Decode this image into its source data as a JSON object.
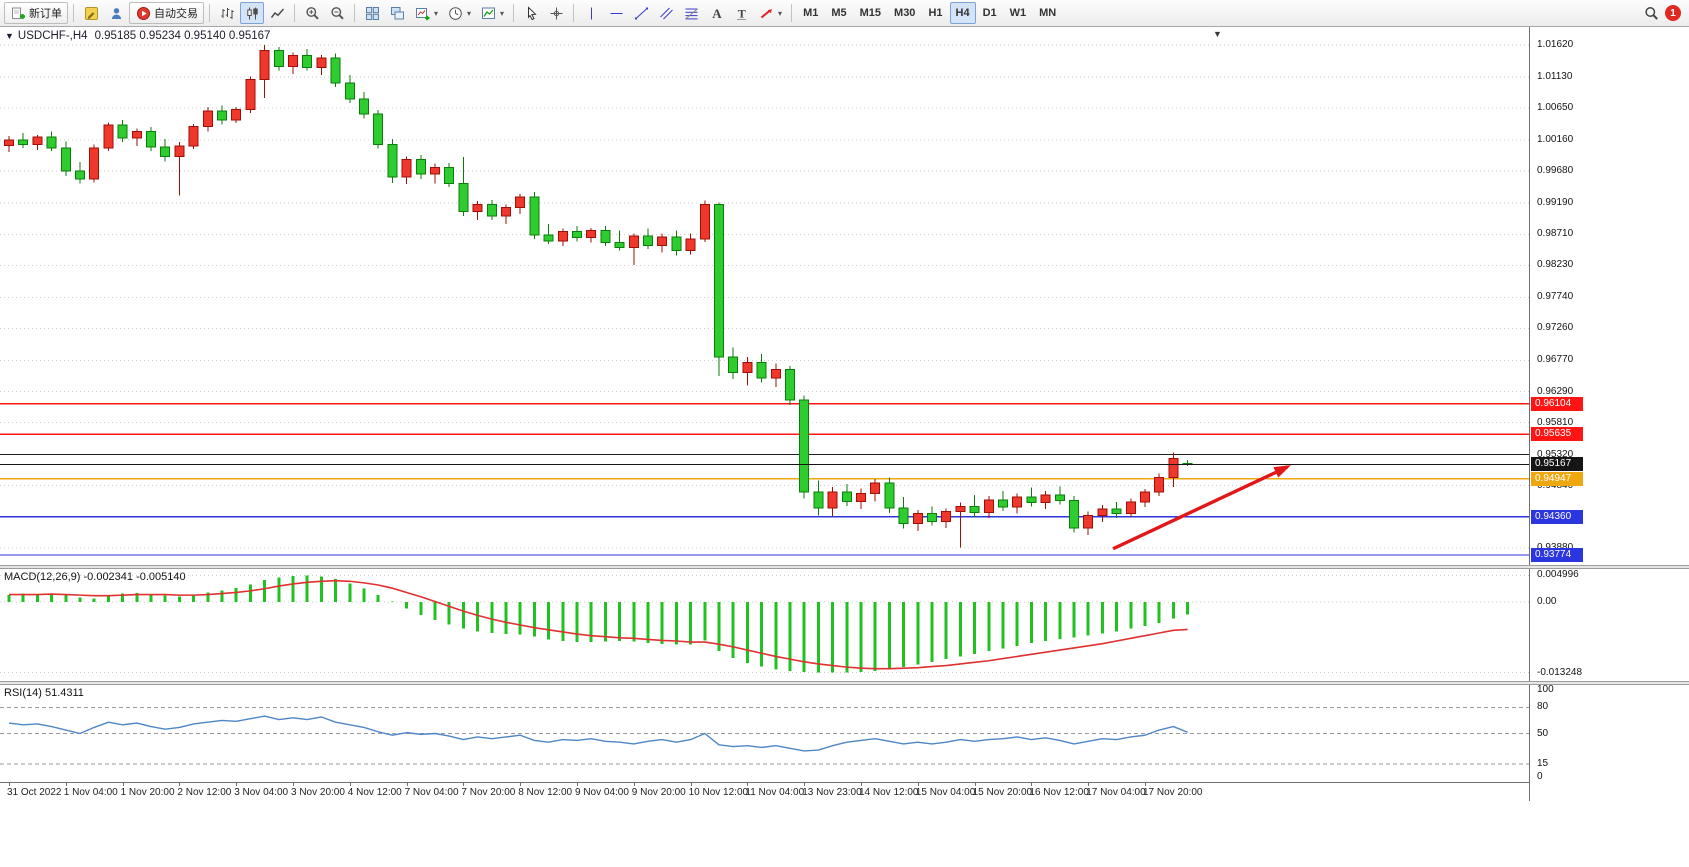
{
  "toolbar": {
    "items": [
      {
        "name": "new-order",
        "icon": "new-order",
        "label": "新订单",
        "framed": true
      },
      {
        "sep": true
      },
      {
        "name": "metaeditor",
        "icon": "metaeditor"
      },
      {
        "name": "market-depth",
        "icon": "person"
      },
      {
        "name": "autotrading",
        "icon": "autotrading",
        "label": "自动交易",
        "framed": true
      },
      {
        "sep": true
      },
      {
        "name": "bar-chart-mode",
        "icon": "bar-chart"
      },
      {
        "name": "candle-chart-mode",
        "icon": "candle-chart",
        "active": true
      },
      {
        "name": "line-chart-mode",
        "icon": "line-chart"
      },
      {
        "sep": true
      },
      {
        "name": "zoom-in",
        "icon": "zoom-in"
      },
      {
        "name": "zoom-out",
        "icon": "zoom-out"
      },
      {
        "sep": true
      },
      {
        "name": "tile-windows",
        "icon": "tile"
      },
      {
        "name": "cascade-windows",
        "icon": "cascade"
      },
      {
        "name": "new-chart",
        "icon": "new-chart",
        "dropdown": true
      },
      {
        "name": "periods",
        "icon": "clock",
        "dropdown": true
      },
      {
        "name": "templates",
        "icon": "template",
        "dropdown": true
      },
      {
        "sep": true
      },
      {
        "name": "cursor",
        "icon": "cursor"
      },
      {
        "name": "crosshair",
        "icon": "crosshair"
      },
      {
        "sep": true
      },
      {
        "name": "vertical-line",
        "icon": "vline"
      },
      {
        "name": "horizontal-line",
        "icon": "hline"
      },
      {
        "name": "trendline",
        "icon": "trendline"
      },
      {
        "name": "equidistant-channel",
        "icon": "channel"
      },
      {
        "name": "fibonacci",
        "icon": "fibo"
      },
      {
        "name": "text",
        "icon": "text"
      },
      {
        "name": "text-label",
        "icon": "label"
      },
      {
        "name": "arrows",
        "icon": "arrow-stamp",
        "dropdown": true
      },
      {
        "sep": true
      }
    ],
    "timeframes": [
      "M1",
      "M5",
      "M15",
      "M30",
      "H1",
      "H4",
      "D1",
      "W1",
      "MN"
    ],
    "active_timeframe": "H4",
    "notification_count": "1"
  },
  "chart_data": {
    "type": "candlestick",
    "symbol_title": "USDCHF-,H4",
    "ohlc_text": "0.95185 0.95234 0.95140 0.95167",
    "ylim": [
      0.9362,
      1.019
    ],
    "price_axis": [
      "1.01620",
      "1.01130",
      "1.00650",
      "1.00160",
      "0.99680",
      "0.99190",
      "0.98710",
      "0.98230",
      "0.97740",
      "0.97260",
      "0.96770",
      "0.96290",
      "0.95810",
      "0.95320",
      "0.94840",
      "0.93880"
    ],
    "time_axis": [
      "31 Oct 2022",
      "1 Nov 04:00",
      "1 Nov 20:00",
      "2 Nov 12:00",
      "3 Nov 04:00",
      "3 Nov 20:00",
      "4 Nov 12:00",
      "7 Nov 04:00",
      "7 Nov 20:00",
      "8 Nov 12:00",
      "9 Nov 04:00",
      "9 Nov 20:00",
      "10 Nov 12:00",
      "11 Nov 04:00",
      "13 Nov 23:00",
      "14 Nov 12:00",
      "15 Nov 04:00",
      "15 Nov 20:00",
      "16 Nov 12:00",
      "17 Nov 04:00",
      "17 Nov 20:00"
    ],
    "colors": {
      "up": "#f0372c",
      "up_border": "#9f0f08",
      "down": "#2ecc2e",
      "down_border": "#0a7d0a",
      "grid": "#cdcdcd",
      "background": "#ffffff"
    },
    "candles": [
      [
        1.0008,
        1.0022,
        0.9998,
        1.0016
      ],
      [
        1.0016,
        1.0027,
        1.0004,
        1.0009
      ],
      [
        1.0009,
        1.0024,
        1.0001,
        1.0021
      ],
      [
        1.0021,
        1.0029,
        0.9999,
        1.0004
      ],
      [
        1.0004,
        1.0014,
        0.9961,
        0.9968
      ],
      [
        0.9968,
        0.9982,
        0.9949,
        0.9956
      ],
      [
        0.9956,
        1.0009,
        0.9951,
        1.0004
      ],
      [
        1.0004,
        1.0043,
        0.9999,
        1.0039
      ],
      [
        1.0039,
        1.0047,
        1.0013,
        1.0019
      ],
      [
        1.0019,
        1.0034,
        1.0007,
        1.0029
      ],
      [
        1.0029,
        1.0036,
        0.9999,
        1.0005
      ],
      [
        1.0005,
        1.0018,
        0.9983,
        0.9991
      ],
      [
        0.9991,
        1.0013,
        0.9931,
        1.0007
      ],
      [
        1.0007,
        1.0041,
        1.0002,
        1.0037
      ],
      [
        1.0037,
        1.0067,
        1.0029,
        1.0061
      ],
      [
        1.0061,
        1.0069,
        1.004,
        1.0047
      ],
      [
        1.0047,
        1.0067,
        1.0042,
        1.0063
      ],
      [
        1.0063,
        1.0114,
        1.0058,
        1.0109
      ],
      [
        1.0109,
        1.0162,
        1.0081,
        1.0154
      ],
      [
        1.0154,
        1.0159,
        1.0123,
        1.0129
      ],
      [
        1.0129,
        1.0151,
        1.0118,
        1.0146
      ],
      [
        1.0146,
        1.0156,
        1.0123,
        1.0128
      ],
      [
        1.0128,
        1.0147,
        1.0116,
        1.0142
      ],
      [
        1.0142,
        1.0149,
        1.0098,
        1.0104
      ],
      [
        1.0104,
        1.0116,
        1.0073,
        1.0079
      ],
      [
        1.0079,
        1.009,
        1.0049,
        1.0056
      ],
      [
        1.0056,
        1.0062,
        1.0003,
        1.0009
      ],
      [
        1.0009,
        1.0018,
        0.995,
        0.9959
      ],
      [
        0.9959,
        0.9991,
        0.9948,
        0.9986
      ],
      [
        0.9986,
        0.9993,
        0.9956,
        0.9964
      ],
      [
        0.9964,
        0.998,
        0.9949,
        0.9974
      ],
      [
        0.9974,
        0.9981,
        0.9944,
        0.9949
      ],
      [
        0.9949,
        0.999,
        0.9899,
        0.9906
      ],
      [
        0.9906,
        0.9922,
        0.9893,
        0.9917
      ],
      [
        0.9917,
        0.9924,
        0.9893,
        0.9899
      ],
      [
        0.9899,
        0.9917,
        0.9887,
        0.9912
      ],
      [
        0.9912,
        0.9933,
        0.9902,
        0.9928
      ],
      [
        0.9928,
        0.9936,
        0.9864,
        0.987
      ],
      [
        0.987,
        0.9887,
        0.9856,
        0.9861
      ],
      [
        0.9861,
        0.988,
        0.9853,
        0.9875
      ],
      [
        0.9875,
        0.9884,
        0.986,
        0.9866
      ],
      [
        0.9866,
        0.9881,
        0.9858,
        0.9877
      ],
      [
        0.9877,
        0.9884,
        0.9853,
        0.9858
      ],
      [
        0.9858,
        0.9877,
        0.9846,
        0.9851
      ],
      [
        0.9851,
        0.9872,
        0.9824,
        0.9868
      ],
      [
        0.9868,
        0.988,
        0.9848,
        0.9854
      ],
      [
        0.9854,
        0.9872,
        0.9843,
        0.9867
      ],
      [
        0.9867,
        0.9877,
        0.9838,
        0.9846
      ],
      [
        0.9846,
        0.9872,
        0.984,
        0.9864
      ],
      [
        0.9864,
        0.9923,
        0.9859,
        0.9917
      ],
      [
        0.9917,
        0.992,
        0.9653,
        0.9682
      ],
      [
        0.9682,
        0.9697,
        0.9648,
        0.9658
      ],
      [
        0.9658,
        0.9682,
        0.9638,
        0.9674
      ],
      [
        0.9674,
        0.9687,
        0.9643,
        0.965
      ],
      [
        0.965,
        0.9672,
        0.9636,
        0.9663
      ],
      [
        0.9663,
        0.9668,
        0.9608,
        0.9616
      ],
      [
        0.9616,
        0.9623,
        0.9464,
        0.9474
      ],
      [
        0.9474,
        0.9492,
        0.9438,
        0.945
      ],
      [
        0.945,
        0.9482,
        0.9437,
        0.9474
      ],
      [
        0.9474,
        0.9487,
        0.9453,
        0.946
      ],
      [
        0.946,
        0.948,
        0.9448,
        0.9472
      ],
      [
        0.9472,
        0.9494,
        0.946,
        0.9488
      ],
      [
        0.9488,
        0.9497,
        0.9442,
        0.945
      ],
      [
        0.945,
        0.9467,
        0.9418,
        0.9426
      ],
      [
        0.9426,
        0.9447,
        0.9414,
        0.9441
      ],
      [
        0.9441,
        0.9452,
        0.9423,
        0.9429
      ],
      [
        0.9429,
        0.9449,
        0.9419,
        0.9444
      ],
      [
        0.9444,
        0.9458,
        0.9389,
        0.9452
      ],
      [
        0.9452,
        0.947,
        0.9436,
        0.9443
      ],
      [
        0.9443,
        0.9468,
        0.9434,
        0.9462
      ],
      [
        0.9462,
        0.9476,
        0.9445,
        0.9451
      ],
      [
        0.9451,
        0.9472,
        0.9441,
        0.9467
      ],
      [
        0.9467,
        0.9481,
        0.9452,
        0.9458
      ],
      [
        0.9458,
        0.9476,
        0.9448,
        0.947
      ],
      [
        0.947,
        0.9483,
        0.9455,
        0.9461
      ],
      [
        0.9461,
        0.9468,
        0.9412,
        0.9419
      ],
      [
        0.9419,
        0.9444,
        0.9408,
        0.9438
      ],
      [
        0.9438,
        0.9454,
        0.9428,
        0.9448
      ],
      [
        0.9448,
        0.9459,
        0.9434,
        0.9441
      ],
      [
        0.9441,
        0.9464,
        0.9436,
        0.9459
      ],
      [
        0.9459,
        0.9479,
        0.9451,
        0.9474
      ],
      [
        0.9474,
        0.9503,
        0.9468,
        0.9497
      ],
      [
        0.9497,
        0.9535,
        0.9482,
        0.9526
      ],
      [
        0.95185,
        0.95234,
        0.9514,
        0.95167
      ]
    ],
    "hlines": [
      {
        "name": "resistance-line-1",
        "price": 0.96104,
        "color": "#ff1414",
        "badge": "0.96104",
        "width": 1.4
      },
      {
        "name": "resistance-line-2",
        "price": 0.95635,
        "color": "#ff1414",
        "badge": "0.95635",
        "width": 1.4
      },
      {
        "name": "swing-high-line",
        "price": 0.9532,
        "color": "#202020",
        "badge": null,
        "width": 1
      },
      {
        "name": "pivot-line",
        "price": 0.94947,
        "color": "#efa710",
        "badge": "0.94947",
        "width": 1.6
      },
      {
        "name": "support-line-1",
        "price": 0.9436,
        "color": "#2b35e0",
        "badge": "0.94360",
        "width": 1.4
      },
      {
        "name": "support-line-2",
        "price": 0.93774,
        "color": "#2b35e0",
        "badge": "0.93774",
        "width": 1.4
      }
    ],
    "bid_line": {
      "price": 0.95167,
      "color": "#151515",
      "badge": "0.95167"
    },
    "arrow": {
      "x1_frac": 0.728,
      "price1": 0.9387,
      "x2_frac": 0.842,
      "price2": 0.9513,
      "color": "#e21717"
    },
    "macd": {
      "label": "MACD(12,26,9)",
      "values_text": "-0.002341 -0.005140",
      "ylim": [
        -0.0148,
        0.0062
      ],
      "axis_ticks": [
        "0.004996",
        "0.00",
        "-0.013248"
      ],
      "histogram_color": "#22c122",
      "signal_color": "#e03030",
      "histogram": [
        0.0013,
        0.0016,
        0.0014,
        0.0016,
        0.0013,
        0.0009,
        0.0007,
        0.0011,
        0.0016,
        0.0017,
        0.0015,
        0.0012,
        0.001,
        0.0013,
        0.0018,
        0.0022,
        0.0026,
        0.0033,
        0.0041,
        0.0046,
        0.0049,
        0.005,
        0.0048,
        0.0043,
        0.0035,
        0.0025,
        0.0013,
        0.0001,
        -0.0012,
        -0.0024,
        -0.0034,
        -0.0042,
        -0.005,
        -0.0055,
        -0.0058,
        -0.006,
        -0.0061,
        -0.0065,
        -0.007,
        -0.0073,
        -0.0075,
        -0.0075,
        -0.0074,
        -0.0073,
        -0.0074,
        -0.0077,
        -0.0079,
        -0.008,
        -0.008,
        -0.0072,
        -0.0092,
        -0.0105,
        -0.0114,
        -0.0121,
        -0.0126,
        -0.0129,
        -0.0131,
        -0.0132,
        -0.01325,
        -0.0132,
        -0.0131,
        -0.0129,
        -0.0126,
        -0.0122,
        -0.0117,
        -0.0112,
        -0.0107,
        -0.0102,
        -0.0097,
        -0.0092,
        -0.0087,
        -0.0082,
        -0.0077,
        -0.0073,
        -0.0069,
        -0.0066,
        -0.0063,
        -0.0059,
        -0.0055,
        -0.005,
        -0.0045,
        -0.0039,
        -0.0031,
        -0.002341
      ],
      "signal": [
        0.0014,
        0.0014,
        0.0014,
        0.0015,
        0.0014,
        0.0013,
        0.0012,
        0.0012,
        0.0013,
        0.0014,
        0.0014,
        0.0014,
        0.0013,
        0.0013,
        0.0014,
        0.0016,
        0.0018,
        0.0021,
        0.0025,
        0.003,
        0.0034,
        0.0037,
        0.0039,
        0.004,
        0.0039,
        0.0036,
        0.0032,
        0.0026,
        0.0018,
        0.001,
        0.0001,
        -0.0008,
        -0.0017,
        -0.0025,
        -0.0032,
        -0.0038,
        -0.0043,
        -0.0048,
        -0.0052,
        -0.0056,
        -0.006,
        -0.0063,
        -0.0065,
        -0.0067,
        -0.0068,
        -0.007,
        -0.0072,
        -0.0073,
        -0.0075,
        -0.0075,
        -0.0079,
        -0.0084,
        -0.009,
        -0.0096,
        -0.0102,
        -0.0107,
        -0.0112,
        -0.0116,
        -0.0119,
        -0.0122,
        -0.0124,
        -0.0125,
        -0.0125,
        -0.0124,
        -0.0123,
        -0.0121,
        -0.0119,
        -0.0116,
        -0.0113,
        -0.011,
        -0.0106,
        -0.0102,
        -0.0098,
        -0.0094,
        -0.009,
        -0.0086,
        -0.0082,
        -0.0078,
        -0.0073,
        -0.0068,
        -0.0063,
        -0.0058,
        -0.0053,
        -0.00514
      ]
    },
    "rsi": {
      "label": "RSI(14)",
      "value_text": "51.4311",
      "ylim": [
        0,
        100
      ],
      "axis_ticks": [
        "100",
        "80",
        "50",
        "15",
        "0"
      ],
      "levels": [
        80,
        50,
        15
      ],
      "line_color": "#4f86c6",
      "values": [
        62,
        60,
        61,
        58,
        54,
        50,
        57,
        63,
        60,
        62,
        58,
        55,
        57,
        61,
        63,
        65,
        64,
        67,
        70,
        66,
        68,
        66,
        69,
        63,
        60,
        57,
        52,
        48,
        51,
        49,
        50,
        47,
        43,
        46,
        44,
        46,
        48,
        42,
        40,
        43,
        42,
        44,
        41,
        40,
        38,
        41,
        43,
        40,
        43,
        50,
        37,
        35,
        36,
        34,
        36,
        33,
        30,
        31,
        36,
        40,
        42,
        44,
        41,
        38,
        40,
        38,
        40,
        43,
        41,
        43,
        44,
        46,
        43,
        45,
        42,
        38,
        41,
        44,
        43,
        46,
        48,
        54,
        58,
        51.43
      ]
    }
  }
}
